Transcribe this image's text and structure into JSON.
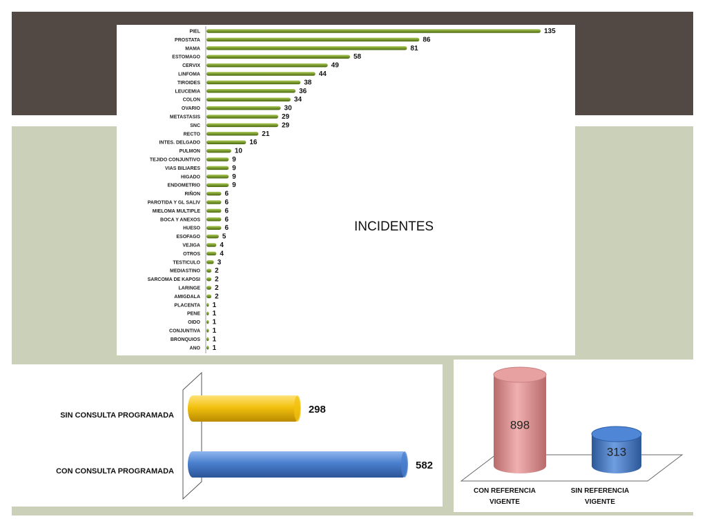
{
  "chart_data": [
    {
      "type": "bar",
      "orientation": "horizontal",
      "title": "INCIDENTES",
      "categories": [
        "PIEL",
        "PROSTATA",
        "MAMA",
        "ESTOMAGO",
        "CERVIX",
        "LINFOMA",
        "TIROIDES",
        "LEUCEMIA",
        "COLON",
        "OVARIO",
        "METASTASIS",
        "SNC",
        "RECTO",
        "INTES. DELGADO",
        "PULMON",
        "TEJIDO CONJUNTIVO",
        "VIAS BILIARES",
        "HIGADO",
        "ENDOMETRIO",
        "RIÑON",
        "PAROTIDA Y GL SALIV",
        "MIELOMA MULTIPLE",
        "BOCA Y ANEXOS",
        "HUESO",
        "ESOFAGO",
        "VEJIGA",
        "OTROS",
        "TESTICULO",
        "MEDIASTINO",
        "SARCOMA DE KAPOSI",
        "LARINGE",
        "AMIGDALA",
        "PLACENTA",
        "PENE",
        "OIDO",
        "CONJUNTIVA",
        "BRONQUIOS",
        "ANO"
      ],
      "values": [
        135,
        86,
        81,
        58,
        49,
        44,
        38,
        36,
        34,
        30,
        29,
        29,
        21,
        16,
        10,
        9,
        9,
        9,
        9,
        6,
        6,
        6,
        6,
        6,
        5,
        4,
        4,
        3,
        2,
        2,
        2,
        2,
        1,
        1,
        1,
        1,
        1,
        1
      ],
      "xlim": [
        0,
        135
      ],
      "grid": false,
      "color": "#7a9a2e"
    },
    {
      "type": "bar",
      "orientation": "horizontal",
      "categories": [
        "SIN CONSULTA PROGRAMADA",
        "CON CONSULTA PROGRAMADA"
      ],
      "values": [
        298,
        582
      ],
      "colors": [
        "#f2c10f",
        "#4a7fce"
      ],
      "xlim": [
        0,
        582
      ]
    },
    {
      "type": "bar",
      "style": "3d-cylinder",
      "categories": [
        "CON REFERENCIA VIGENTE",
        "SIN REFERENCIA VIGENTE"
      ],
      "values": [
        898,
        313
      ],
      "colors": [
        "#d98c8c",
        "#3f75c2"
      ],
      "ylim": [
        0,
        898
      ]
    }
  ]
}
